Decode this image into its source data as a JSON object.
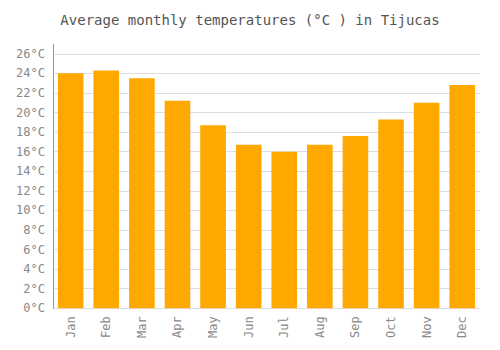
{
  "chart_data": {
    "type": "bar",
    "title": "Average monthly temperatures (°C ) in Tijucas",
    "categories": [
      "Jan",
      "Feb",
      "Mar",
      "Apr",
      "May",
      "Jun",
      "Jul",
      "Aug",
      "Sep",
      "Oct",
      "Nov",
      "Dec"
    ],
    "values": [
      24.0,
      24.3,
      23.5,
      21.2,
      18.7,
      16.7,
      16.0,
      16.7,
      17.6,
      19.3,
      21.0,
      22.8
    ],
    "color": "#FFA800",
    "ylim": [
      0,
      27
    ],
    "yticks": [
      {
        "value": 0,
        "label": "0°C"
      },
      {
        "value": 2,
        "label": "2°C"
      },
      {
        "value": 4,
        "label": "4°C"
      },
      {
        "value": 6,
        "label": "6°C"
      },
      {
        "value": 8,
        "label": "8°C"
      },
      {
        "value": 10,
        "label": "10°C"
      },
      {
        "value": 12,
        "label": "12°C"
      },
      {
        "value": 14,
        "label": "14°C"
      },
      {
        "value": 16,
        "label": "16°C"
      },
      {
        "value": 18,
        "label": "18°C"
      },
      {
        "value": 20,
        "label": "20°C"
      },
      {
        "value": 22,
        "label": "22°C"
      },
      {
        "value": 24,
        "label": "24°C"
      },
      {
        "value": 26,
        "label": "26°C"
      }
    ],
    "grid": true
  }
}
